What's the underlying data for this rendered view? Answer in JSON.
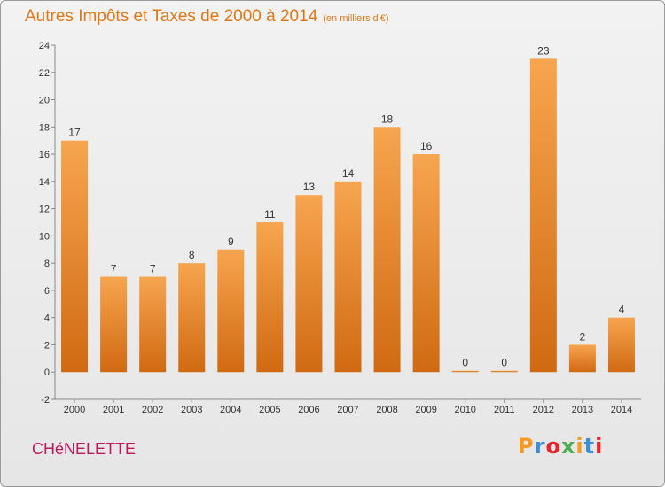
{
  "header": {
    "title": "Autres Impôts et Taxes de 2000 à 2014",
    "subtitle": "(en milliers d'€)"
  },
  "footer": {
    "commune": "CHéNELETTE",
    "logo_letters": [
      "P",
      "r",
      "o",
      "x",
      "i",
      "t",
      "i"
    ],
    "logo_colors": [
      "#f59a23",
      "#3a8fd8",
      "#e8232a",
      "#4caf50",
      "#f59a23",
      "#3a8fd8",
      "#e8232a"
    ]
  },
  "chart_data": {
    "type": "bar",
    "title": "Autres Impôts et Taxes de 2000 à 2014",
    "subtitle": "(en milliers d'€)",
    "xlabel": "",
    "ylabel": "",
    "categories": [
      "2000",
      "2001",
      "2002",
      "2003",
      "2004",
      "2005",
      "2006",
      "2007",
      "2008",
      "2009",
      "2010",
      "2011",
      "2012",
      "2013",
      "2014"
    ],
    "values": [
      17,
      7,
      7,
      8,
      9,
      11,
      13,
      14,
      18,
      16,
      0,
      0,
      23,
      2,
      4
    ],
    "ylim": [
      -2,
      24
    ],
    "yticks": [
      -2,
      0,
      2,
      4,
      6,
      8,
      10,
      12,
      14,
      16,
      18,
      20,
      22,
      24
    ],
    "grid": false,
    "bar_color_top": "#f7a54f",
    "bar_color_bottom": "#d06a12"
  }
}
